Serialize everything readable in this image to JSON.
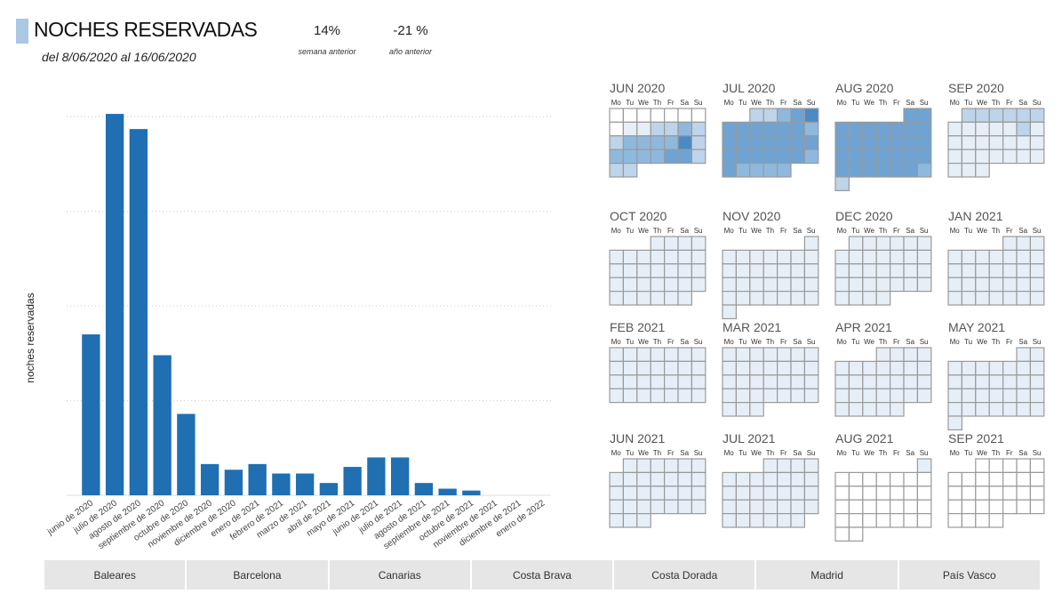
{
  "header": {
    "title": "NOCHES RESERVADAS",
    "date_range": "del 8/06/2020 al 16/06/2020",
    "kpis": [
      {
        "value": "14%",
        "label": "semana anterior"
      },
      {
        "value": "-21 %",
        "label": "año anterior"
      }
    ]
  },
  "chart_data": {
    "type": "bar",
    "title": "",
    "xlabel": "",
    "ylabel": "noches reservadas",
    "categories": [
      "junio de 2020",
      "julio de 2020",
      "agosto de 2020",
      "septiembre de 2020",
      "octubre de 2020",
      "noviembre de 2020",
      "diciembre de 2020",
      "enero de 2021",
      "febrero de 2021",
      "marzo de 2021",
      "abril de 2021",
      "mayo de 2021",
      "junio de 2021",
      "julio de 2021",
      "agosto de 2021",
      "septiembre de 2021",
      "octubre de 2021",
      "noviembre de 2021",
      "diciembre de 2021",
      "enero de 2022"
    ],
    "values": [
      1.7,
      4.03,
      3.87,
      1.48,
      0.86,
      0.33,
      0.27,
      0.33,
      0.23,
      0.23,
      0.13,
      0.3,
      0.4,
      0.4,
      0.13,
      0.07,
      0.05,
      0,
      0,
      0
    ],
    "ylim": [
      0,
      4.2
    ],
    "gridlines": [
      1,
      2,
      3,
      4
    ],
    "grid": true,
    "bar_color": "#1f6fb2"
  },
  "calendar": {
    "weekday_labels": [
      "Mo",
      "Tu",
      "We",
      "Th",
      "Fr",
      "Sa",
      "Su"
    ],
    "colors": {
      "empty": "#ffffff",
      "level1": "#e6eff7",
      "level2": "#bdd4ea",
      "level3": "#8fb8dd",
      "level4": "#6ea3d3",
      "level5": "#4a8ac5",
      "level6": "#1f64a8",
      "border": "#9a9a9a"
    },
    "months": [
      {
        "label": "JUN 2020",
        "offset": 0,
        "days": 30,
        "levels": [
          0,
          0,
          0,
          0,
          0,
          0,
          0,
          0,
          1,
          1,
          2,
          2,
          3,
          2,
          2,
          3,
          3,
          3,
          3,
          5,
          2,
          3,
          3,
          3,
          3,
          4,
          4,
          2,
          2,
          2
        ]
      },
      {
        "label": "JUL 2020",
        "offset": 2,
        "days": 31,
        "levels": [
          2,
          2,
          3,
          4,
          5,
          4,
          4,
          4,
          4,
          4,
          4,
          3,
          4,
          4,
          4,
          4,
          4,
          4,
          4,
          4,
          4,
          4,
          4,
          4,
          4,
          3,
          4,
          3,
          3,
          3,
          3
        ]
      },
      {
        "label": "AUG 2020",
        "offset": 5,
        "days": 31,
        "levels": [
          4,
          4,
          4,
          4,
          4,
          4,
          4,
          4,
          4,
          4,
          4,
          4,
          4,
          4,
          4,
          4,
          4,
          4,
          4,
          4,
          4,
          4,
          4,
          4,
          4,
          4,
          4,
          4,
          4,
          3,
          2
        ]
      },
      {
        "label": "SEP 2020",
        "offset": 1,
        "days": 30,
        "levels": [
          2,
          2,
          2,
          2,
          2,
          2,
          1,
          1,
          1,
          1,
          1,
          2,
          1,
          1,
          1,
          1,
          1,
          1,
          1,
          1,
          1,
          1,
          1,
          1,
          1,
          1,
          1,
          1,
          1,
          1
        ]
      },
      {
        "label": "OCT 2020",
        "offset": 3,
        "days": 31,
        "levels": [
          1,
          1,
          1,
          1,
          1,
          1,
          1,
          1,
          1,
          1,
          1,
          1,
          1,
          1,
          1,
          1,
          1,
          1,
          1,
          1,
          1,
          1,
          1,
          1,
          1,
          1,
          1,
          1,
          1,
          1,
          1
        ]
      },
      {
        "label": "NOV 2020",
        "offset": 6,
        "days": 30,
        "levels": [
          1,
          1,
          1,
          1,
          1,
          1,
          1,
          1,
          1,
          1,
          1,
          1,
          1,
          1,
          1,
          1,
          1,
          1,
          1,
          1,
          1,
          1,
          1,
          1,
          1,
          1,
          1,
          1,
          1,
          1
        ]
      },
      {
        "label": "DEC 2020",
        "offset": 1,
        "days": 31,
        "levels": [
          1,
          1,
          1,
          1,
          1,
          1,
          1,
          1,
          1,
          1,
          1,
          1,
          1,
          1,
          1,
          1,
          1,
          1,
          1,
          1,
          1,
          1,
          1,
          1,
          1,
          1,
          1,
          1,
          1,
          1,
          1
        ]
      },
      {
        "label": "JAN 2021",
        "offset": 4,
        "days": 31,
        "levels": [
          1,
          1,
          1,
          1,
          1,
          1,
          1,
          1,
          1,
          1,
          1,
          1,
          1,
          1,
          1,
          1,
          1,
          1,
          1,
          1,
          1,
          1,
          1,
          1,
          1,
          1,
          1,
          1,
          1,
          1,
          1
        ]
      },
      {
        "label": "FEB 2021",
        "offset": 0,
        "days": 28,
        "levels": [
          1,
          1,
          1,
          1,
          1,
          1,
          1,
          1,
          1,
          1,
          1,
          1,
          1,
          1,
          1,
          1,
          1,
          1,
          1,
          1,
          1,
          1,
          1,
          1,
          1,
          1,
          1,
          1
        ]
      },
      {
        "label": "MAR 2021",
        "offset": 0,
        "days": 31,
        "levels": [
          1,
          1,
          1,
          1,
          1,
          1,
          1,
          1,
          1,
          1,
          1,
          1,
          1,
          1,
          1,
          1,
          1,
          1,
          1,
          1,
          1,
          1,
          1,
          1,
          1,
          1,
          1,
          1,
          1,
          1,
          1
        ]
      },
      {
        "label": "APR 2021",
        "offset": 3,
        "days": 30,
        "levels": [
          1,
          1,
          1,
          1,
          1,
          1,
          1,
          1,
          1,
          1,
          1,
          1,
          1,
          1,
          1,
          1,
          1,
          1,
          1,
          1,
          1,
          1,
          1,
          1,
          1,
          1,
          1,
          1,
          1,
          1
        ]
      },
      {
        "label": "MAY 2021",
        "offset": 5,
        "days": 31,
        "levels": [
          1,
          1,
          1,
          1,
          1,
          1,
          1,
          1,
          1,
          1,
          1,
          1,
          1,
          1,
          1,
          1,
          1,
          1,
          1,
          1,
          1,
          1,
          1,
          1,
          1,
          1,
          1,
          1,
          1,
          1,
          1
        ]
      },
      {
        "label": "JUN 2021",
        "offset": 1,
        "days": 30,
        "levels": [
          1,
          1,
          1,
          1,
          1,
          1,
          1,
          1,
          1,
          1,
          1,
          1,
          1,
          1,
          1,
          1,
          1,
          1,
          1,
          1,
          1,
          1,
          1,
          1,
          1,
          1,
          1,
          1,
          1,
          1
        ]
      },
      {
        "label": "JUL 2021",
        "offset": 3,
        "days": 31,
        "levels": [
          1,
          1,
          1,
          1,
          1,
          1,
          1,
          1,
          1,
          1,
          1,
          1,
          1,
          1,
          1,
          1,
          1,
          1,
          1,
          1,
          1,
          1,
          1,
          1,
          1,
          1,
          1,
          1,
          1,
          1,
          1
        ]
      },
      {
        "label": "AUG 2021",
        "offset": 6,
        "days": 31,
        "levels": [
          1,
          0,
          0,
          0,
          0,
          0,
          0,
          0,
          0,
          0,
          0,
          0,
          0,
          0,
          0,
          0,
          0,
          0,
          0,
          0,
          0,
          0,
          0,
          0,
          0,
          0,
          0,
          0,
          0,
          0,
          0
        ]
      },
      {
        "label": "SEP 2021",
        "offset": 2,
        "days": 30,
        "levels": [
          0,
          0,
          0,
          0,
          0,
          0,
          0,
          0,
          0,
          0,
          0,
          0,
          0,
          0,
          0,
          0,
          0,
          0,
          0,
          0,
          0,
          0,
          0,
          0,
          0,
          0,
          0,
          0,
          0,
          0
        ]
      }
    ]
  },
  "slicer": {
    "items": [
      "Baleares",
      "Barcelona",
      "Canarias",
      "Costa Brava",
      "Costa Dorada",
      "Madrid",
      "País Vasco"
    ]
  }
}
